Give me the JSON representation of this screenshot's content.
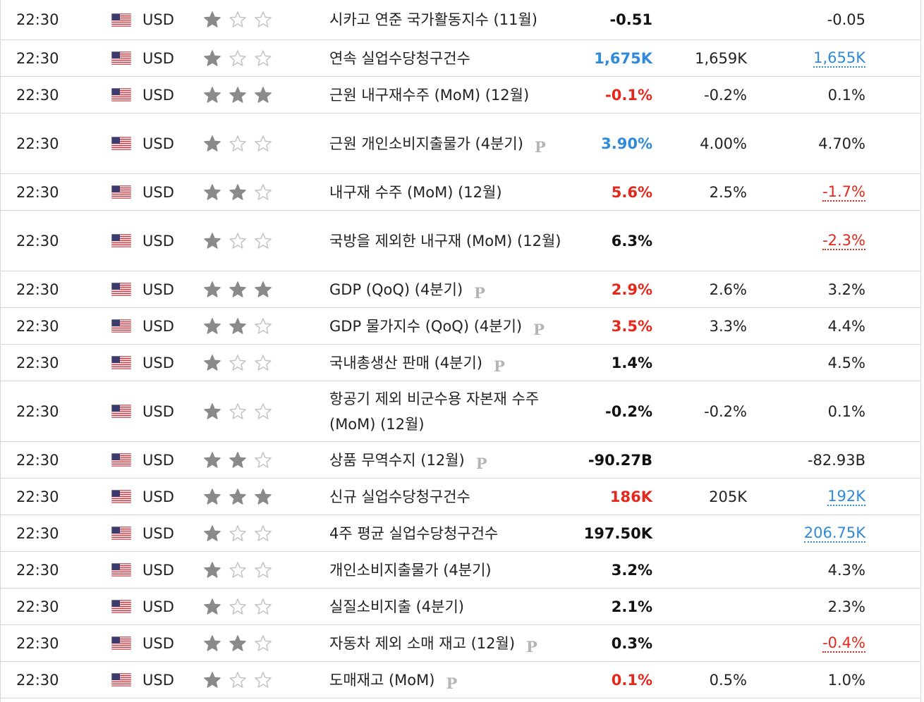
{
  "colors": {
    "red": "#e5281c",
    "blue": "#2f8ad9",
    "star_on": "#8a8a8a",
    "star_off": "#c4c4c4",
    "border": "#d7d7d7"
  },
  "rows": [
    {
      "time": "22:30",
      "currency": "USD",
      "flag": "us-flag-icon",
      "stars": 1,
      "event": "시카고 연준 국가활동지수 (11월)",
      "prelim": false,
      "actual": "-0.51",
      "actual_color": "black",
      "forecast": "",
      "previous": "-0.05",
      "previous_revised": ""
    },
    {
      "time": "22:30",
      "currency": "USD",
      "flag": "us-flag-icon",
      "stars": 1,
      "event": "연속 실업수당청구건수",
      "prelim": false,
      "actual": "1,675K",
      "actual_color": "blue",
      "forecast": "1,659K",
      "previous": "1,655K",
      "previous_revised": "blue"
    },
    {
      "time": "22:30",
      "currency": "USD",
      "flag": "us-flag-icon",
      "stars": 3,
      "event": "근원 내구재수주 (MoM) (12월)",
      "prelim": false,
      "actual": "-0.1%",
      "actual_color": "red",
      "forecast": "-0.2%",
      "previous": "0.1%",
      "previous_revised": ""
    },
    {
      "time": "22:30",
      "currency": "USD",
      "flag": "us-flag-icon",
      "stars": 1,
      "event": "근원 개인소비지출물가 (4분기)",
      "prelim": true,
      "actual": "3.90%",
      "actual_color": "blue",
      "forecast": "4.00%",
      "previous": "4.70%",
      "previous_revised": ""
    },
    {
      "time": "22:30",
      "currency": "USD",
      "flag": "us-flag-icon",
      "stars": 2,
      "event": "내구재 수주 (MoM) (12월)",
      "prelim": false,
      "actual": "5.6%",
      "actual_color": "red",
      "forecast": "2.5%",
      "previous": "-1.7%",
      "previous_revised": "red"
    },
    {
      "time": "22:30",
      "currency": "USD",
      "flag": "us-flag-icon",
      "stars": 1,
      "event": "국방을 제외한 내구재 (MoM) (12월)",
      "prelim": false,
      "actual": "6.3%",
      "actual_color": "black",
      "forecast": "",
      "previous": "-2.3%",
      "previous_revised": "red"
    },
    {
      "time": "22:30",
      "currency": "USD",
      "flag": "us-flag-icon",
      "stars": 3,
      "event": "GDP (QoQ) (4분기)",
      "prelim": true,
      "actual": "2.9%",
      "actual_color": "red",
      "forecast": "2.6%",
      "previous": "3.2%",
      "previous_revised": ""
    },
    {
      "time": "22:30",
      "currency": "USD",
      "flag": "us-flag-icon",
      "stars": 2,
      "event": "GDP 물가지수 (QoQ) (4분기)",
      "prelim": true,
      "actual": "3.5%",
      "actual_color": "red",
      "forecast": "3.3%",
      "previous": "4.4%",
      "previous_revised": ""
    },
    {
      "time": "22:30",
      "currency": "USD",
      "flag": "us-flag-icon",
      "stars": 1,
      "event": "국내총생산 판매 (4분기)",
      "prelim": true,
      "actual": "1.4%",
      "actual_color": "black",
      "forecast": "",
      "previous": "4.5%",
      "previous_revised": ""
    },
    {
      "time": "22:30",
      "currency": "USD",
      "flag": "us-flag-icon",
      "stars": 1,
      "event": "항공기 제외 비군수용 자본재 수주 (MoM) (12월)",
      "prelim": false,
      "actual": "-0.2%",
      "actual_color": "black",
      "forecast": "-0.2%",
      "previous": "0.1%",
      "previous_revised": ""
    },
    {
      "time": "22:30",
      "currency": "USD",
      "flag": "us-flag-icon",
      "stars": 2,
      "event": "상품 무역수지 (12월)",
      "prelim": true,
      "actual": "-90.27B",
      "actual_color": "black",
      "forecast": "",
      "previous": "-82.93B",
      "previous_revised": ""
    },
    {
      "time": "22:30",
      "currency": "USD",
      "flag": "us-flag-icon",
      "stars": 3,
      "event": "신규 실업수당청구건수",
      "prelim": false,
      "actual": "186K",
      "actual_color": "red",
      "forecast": "205K",
      "previous": "192K",
      "previous_revised": "blue"
    },
    {
      "time": "22:30",
      "currency": "USD",
      "flag": "us-flag-icon",
      "stars": 1,
      "event": "4주 평균 실업수당청구건수",
      "prelim": false,
      "actual": "197.50K",
      "actual_color": "black",
      "forecast": "",
      "previous": "206.75K",
      "previous_revised": "blue"
    },
    {
      "time": "22:30",
      "currency": "USD",
      "flag": "us-flag-icon",
      "stars": 1,
      "event": "개인소비지출물가 (4분기)",
      "prelim": false,
      "actual": "3.2%",
      "actual_color": "black",
      "forecast": "",
      "previous": "4.3%",
      "previous_revised": ""
    },
    {
      "time": "22:30",
      "currency": "USD",
      "flag": "us-flag-icon",
      "stars": 1,
      "event": "실질소비지출 (4분기)",
      "prelim": false,
      "actual": "2.1%",
      "actual_color": "black",
      "forecast": "",
      "previous": "2.3%",
      "previous_revised": ""
    },
    {
      "time": "22:30",
      "currency": "USD",
      "flag": "us-flag-icon",
      "stars": 2,
      "event": "자동차 제외 소매 재고 (12월)",
      "prelim": true,
      "actual": "0.3%",
      "actual_color": "black",
      "forecast": "",
      "previous": "-0.4%",
      "previous_revised": "red"
    },
    {
      "time": "22:30",
      "currency": "USD",
      "flag": "us-flag-icon",
      "stars": 1,
      "event": "도매재고 (MoM)",
      "prelim": true,
      "actual": "0.1%",
      "actual_color": "red",
      "forecast": "0.5%",
      "previous": "1.0%",
      "previous_revised": ""
    }
  ]
}
